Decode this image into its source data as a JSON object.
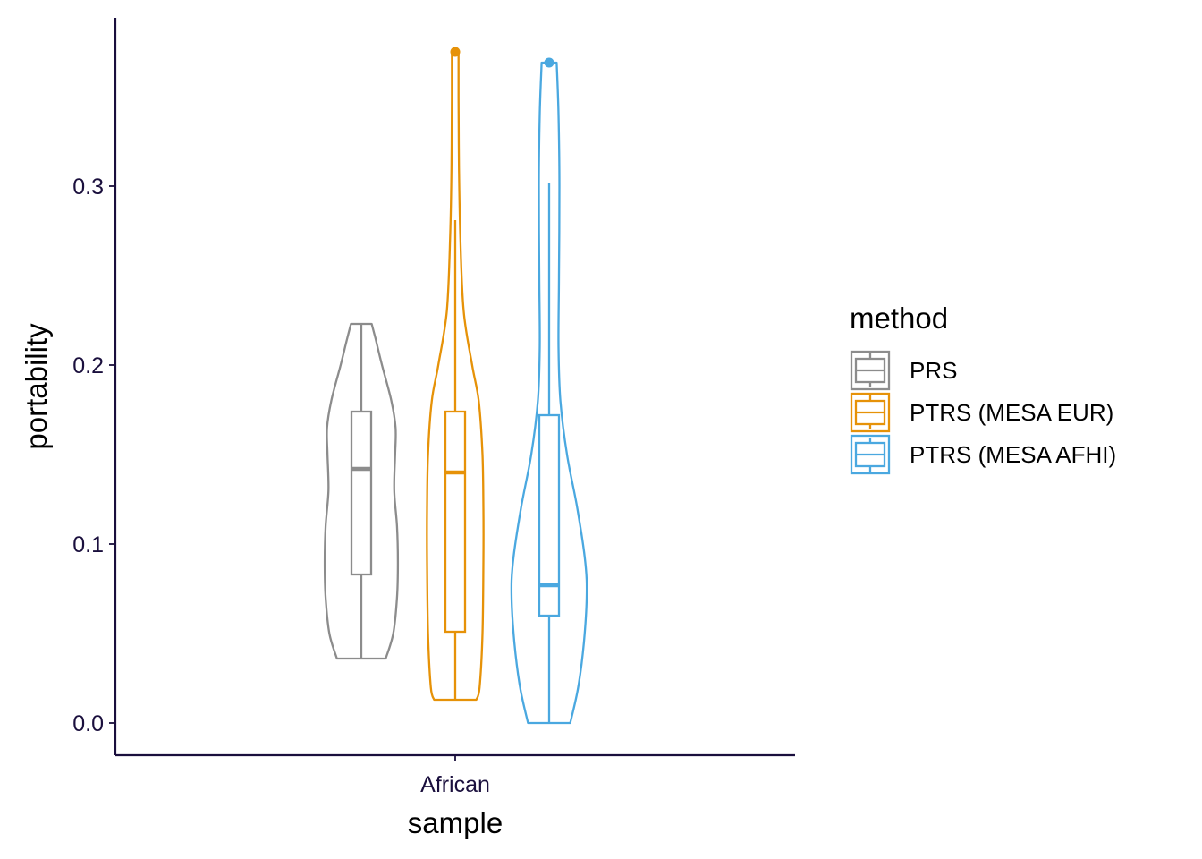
{
  "colors": {
    "axis": "#1a0f3d",
    "PRS": "#8c8c8c",
    "PTRS (MESA EUR)": "#e69208",
    "PTRS (MESA AFHI)": "#4aa8e0"
  },
  "chart_data": {
    "type": "violin+box",
    "title": "",
    "xlabel": "sample",
    "ylabel": "portability",
    "categories": [
      "African"
    ],
    "yticks": [
      "0.0",
      "0.1",
      "0.2",
      "0.3"
    ],
    "ytick_values": [
      0.0,
      0.1,
      0.2,
      0.3
    ],
    "ylim": [
      -0.018,
      0.395
    ],
    "grid": false,
    "legend": {
      "title": "method",
      "position": "right",
      "items": [
        "PRS",
        "PTRS (MESA EUR)",
        "PTRS (MESA AFHI)"
      ]
    },
    "series": [
      {
        "name": "PRS",
        "box": {
          "min": 0.036,
          "q1": 0.083,
          "median": 0.142,
          "q3": 0.174,
          "max": 0.223
        },
        "outliers": [],
        "violin_min": 0.036,
        "violin_max": 0.223,
        "density": [
          [
            0.036,
            0.52
          ],
          [
            0.05,
            0.68
          ],
          [
            0.07,
            0.76
          ],
          [
            0.09,
            0.78
          ],
          [
            0.11,
            0.76
          ],
          [
            0.13,
            0.7
          ],
          [
            0.15,
            0.72
          ],
          [
            0.165,
            0.73
          ],
          [
            0.18,
            0.64
          ],
          [
            0.2,
            0.44
          ],
          [
            0.215,
            0.3
          ],
          [
            0.223,
            0.22
          ]
        ]
      },
      {
        "name": "PTRS (MESA EUR)",
        "box": {
          "min": 0.013,
          "q1": 0.051,
          "median": 0.14,
          "q3": 0.174,
          "max": 0.281
        },
        "outliers": [
          0.375
        ],
        "violin_min": 0.013,
        "violin_max": 0.375,
        "density": [
          [
            0.013,
            0.45
          ],
          [
            0.02,
            0.52
          ],
          [
            0.05,
            0.58
          ],
          [
            0.09,
            0.6
          ],
          [
            0.12,
            0.6
          ],
          [
            0.15,
            0.58
          ],
          [
            0.18,
            0.5
          ],
          [
            0.2,
            0.36
          ],
          [
            0.23,
            0.18
          ],
          [
            0.27,
            0.11
          ],
          [
            0.31,
            0.08
          ],
          [
            0.35,
            0.07
          ],
          [
            0.375,
            0.07
          ]
        ]
      },
      {
        "name": "PTRS (MESA AFHI)",
        "box": {
          "min": 0.0,
          "q1": 0.06,
          "median": 0.077,
          "q3": 0.172,
          "max": 0.302
        },
        "outliers": [
          0.369
        ],
        "violin_min": 0.0,
        "violin_max": 0.369,
        "density": [
          [
            0.0,
            0.45
          ],
          [
            0.02,
            0.62
          ],
          [
            0.045,
            0.74
          ],
          [
            0.07,
            0.8
          ],
          [
            0.09,
            0.77
          ],
          [
            0.12,
            0.6
          ],
          [
            0.15,
            0.38
          ],
          [
            0.18,
            0.24
          ],
          [
            0.21,
            0.2
          ],
          [
            0.25,
            0.21
          ],
          [
            0.3,
            0.22
          ],
          [
            0.34,
            0.2
          ],
          [
            0.369,
            0.16
          ]
        ]
      }
    ]
  }
}
